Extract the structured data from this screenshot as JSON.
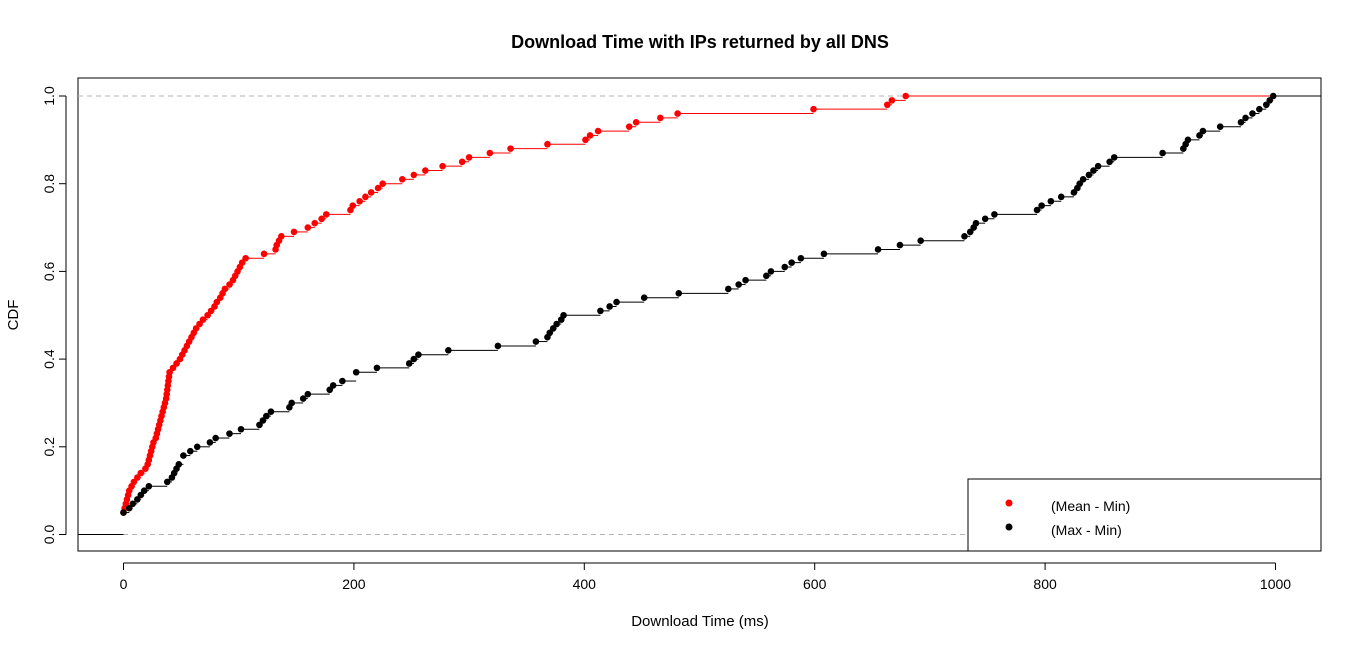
{
  "chart_data": {
    "type": "line",
    "title": "Download Time with IPs returned by all DNS",
    "xlabel": "Download Time (ms)",
    "ylabel": "CDF",
    "xlim": [
      0,
      1000
    ],
    "ylim": [
      0,
      1
    ],
    "x_ticks": [
      0,
      200,
      400,
      600,
      800,
      1000
    ],
    "y_ticks": [
      0,
      0.2,
      0.4,
      0.6,
      0.8,
      1
    ],
    "x_tick_labels": [
      "0",
      "200",
      "400",
      "600",
      "800",
      "1000"
    ],
    "y_tick_labels": [
      "0.0",
      "0.2",
      "0.4",
      "0.6",
      "0.8",
      "1.0"
    ],
    "reference_lines": [
      0,
      1
    ],
    "grid": false,
    "legend_position": "bottom-right",
    "series": [
      {
        "name": "(Mean - Min)",
        "color": "#ff0000",
        "step": true,
        "points": [
          [
            0,
            0.05
          ],
          [
            1,
            0.06
          ],
          [
            2,
            0.07
          ],
          [
            3,
            0.08
          ],
          [
            4,
            0.09
          ],
          [
            5,
            0.1
          ],
          [
            7,
            0.11
          ],
          [
            9,
            0.12
          ],
          [
            12,
            0.13
          ],
          [
            15,
            0.14
          ],
          [
            19,
            0.15
          ],
          [
            21,
            0.16
          ],
          [
            22,
            0.17
          ],
          [
            23,
            0.18
          ],
          [
            24,
            0.19
          ],
          [
            25,
            0.2
          ],
          [
            26,
            0.21
          ],
          [
            28,
            0.22
          ],
          [
            29,
            0.23
          ],
          [
            30,
            0.24
          ],
          [
            31,
            0.25
          ],
          [
            32,
            0.26
          ],
          [
            33,
            0.27
          ],
          [
            34,
            0.28
          ],
          [
            35,
            0.29
          ],
          [
            36,
            0.3
          ],
          [
            37,
            0.31
          ],
          [
            37.5,
            0.32
          ],
          [
            38,
            0.33
          ],
          [
            38.5,
            0.34
          ],
          [
            39,
            0.35
          ],
          [
            39.5,
            0.36
          ],
          [
            40,
            0.37
          ],
          [
            43,
            0.38
          ],
          [
            46,
            0.39
          ],
          [
            49,
            0.4
          ],
          [
            51,
            0.41
          ],
          [
            53,
            0.42
          ],
          [
            55,
            0.43
          ],
          [
            57,
            0.44
          ],
          [
            59,
            0.45
          ],
          [
            61,
            0.46
          ],
          [
            63,
            0.47
          ],
          [
            66,
            0.48
          ],
          [
            69,
            0.49
          ],
          [
            73,
            0.5
          ],
          [
            76,
            0.51
          ],
          [
            79,
            0.52
          ],
          [
            81,
            0.53
          ],
          [
            84,
            0.54
          ],
          [
            86,
            0.55
          ],
          [
            88,
            0.56
          ],
          [
            92,
            0.57
          ],
          [
            95,
            0.58
          ],
          [
            97,
            0.59
          ],
          [
            99,
            0.6
          ],
          [
            101,
            0.61
          ],
          [
            103,
            0.62
          ],
          [
            106,
            0.63
          ],
          [
            122,
            0.64
          ],
          [
            132,
            0.65
          ],
          [
            133,
            0.66
          ],
          [
            135,
            0.67
          ],
          [
            137,
            0.68
          ],
          [
            148,
            0.69
          ],
          [
            160,
            0.7
          ],
          [
            166,
            0.71
          ],
          [
            172,
            0.72
          ],
          [
            176,
            0.73
          ],
          [
            197,
            0.74
          ],
          [
            199,
            0.75
          ],
          [
            205,
            0.76
          ],
          [
            210,
            0.77
          ],
          [
            215,
            0.78
          ],
          [
            221,
            0.79
          ],
          [
            225,
            0.8
          ],
          [
            242,
            0.81
          ],
          [
            252,
            0.82
          ],
          [
            262,
            0.83
          ],
          [
            277,
            0.84
          ],
          [
            294,
            0.85
          ],
          [
            300,
            0.86
          ],
          [
            318,
            0.87
          ],
          [
            336,
            0.88
          ],
          [
            368,
            0.89
          ],
          [
            401,
            0.9
          ],
          [
            405,
            0.91
          ],
          [
            412,
            0.92
          ],
          [
            439,
            0.93
          ],
          [
            445,
            0.94
          ],
          [
            466,
            0.95
          ],
          [
            481,
            0.96
          ],
          [
            599,
            0.97
          ],
          [
            663,
            0.98
          ],
          [
            667,
            0.99
          ],
          [
            679,
            1.0
          ]
        ]
      },
      {
        "name": "(Max - Min)",
        "color": "#000000",
        "step": true,
        "points": [
          [
            0,
            0.05
          ],
          [
            5,
            0.06
          ],
          [
            8,
            0.07
          ],
          [
            12,
            0.08
          ],
          [
            15,
            0.09
          ],
          [
            18,
            0.1
          ],
          [
            22,
            0.11
          ],
          [
            38,
            0.12
          ],
          [
            42,
            0.13
          ],
          [
            44,
            0.14
          ],
          [
            46,
            0.15
          ],
          [
            48,
            0.16
          ],
          [
            52,
            0.18
          ],
          [
            58,
            0.19
          ],
          [
            64,
            0.2
          ],
          [
            75,
            0.21
          ],
          [
            80,
            0.22
          ],
          [
            92,
            0.23
          ],
          [
            102,
            0.24
          ],
          [
            118,
            0.25
          ],
          [
            121,
            0.26
          ],
          [
            124,
            0.27
          ],
          [
            128,
            0.28
          ],
          [
            144,
            0.29
          ],
          [
            146,
            0.3
          ],
          [
            156,
            0.31
          ],
          [
            160,
            0.32
          ],
          [
            179,
            0.33
          ],
          [
            182,
            0.34
          ],
          [
            190,
            0.35
          ],
          [
            202,
            0.37
          ],
          [
            220,
            0.38
          ],
          [
            248,
            0.39
          ],
          [
            252,
            0.4
          ],
          [
            256,
            0.41
          ],
          [
            282,
            0.42
          ],
          [
            325,
            0.43
          ],
          [
            358,
            0.44
          ],
          [
            368,
            0.45
          ],
          [
            370,
            0.46
          ],
          [
            373,
            0.47
          ],
          [
            376,
            0.48
          ],
          [
            380,
            0.49
          ],
          [
            382,
            0.5
          ],
          [
            414,
            0.51
          ],
          [
            422,
            0.52
          ],
          [
            428,
            0.53
          ],
          [
            452,
            0.54
          ],
          [
            482,
            0.55
          ],
          [
            525,
            0.56
          ],
          [
            534,
            0.57
          ],
          [
            540,
            0.58
          ],
          [
            558,
            0.59
          ],
          [
            562,
            0.6
          ],
          [
            574,
            0.61
          ],
          [
            580,
            0.62
          ],
          [
            588,
            0.63
          ],
          [
            608,
            0.64
          ],
          [
            655,
            0.65
          ],
          [
            674,
            0.66
          ],
          [
            692,
            0.67
          ],
          [
            730,
            0.68
          ],
          [
            735,
            0.69
          ],
          [
            738,
            0.7
          ],
          [
            740,
            0.71
          ],
          [
            748,
            0.72
          ],
          [
            756,
            0.73
          ],
          [
            793,
            0.74
          ],
          [
            797,
            0.75
          ],
          [
            805,
            0.76
          ],
          [
            814,
            0.77
          ],
          [
            825,
            0.78
          ],
          [
            828,
            0.79
          ],
          [
            830,
            0.8
          ],
          [
            833,
            0.81
          ],
          [
            838,
            0.82
          ],
          [
            842,
            0.83
          ],
          [
            846,
            0.84
          ],
          [
            856,
            0.85
          ],
          [
            860,
            0.86
          ],
          [
            902,
            0.87
          ],
          [
            920,
            0.88
          ],
          [
            922,
            0.89
          ],
          [
            924,
            0.9
          ],
          [
            934,
            0.91
          ],
          [
            937,
            0.92
          ],
          [
            952,
            0.93
          ],
          [
            970,
            0.94
          ],
          [
            974,
            0.95
          ],
          [
            980,
            0.96
          ],
          [
            986,
            0.97
          ],
          [
            992,
            0.98
          ],
          [
            995,
            0.99
          ],
          [
            998,
            1.0
          ]
        ]
      }
    ]
  }
}
